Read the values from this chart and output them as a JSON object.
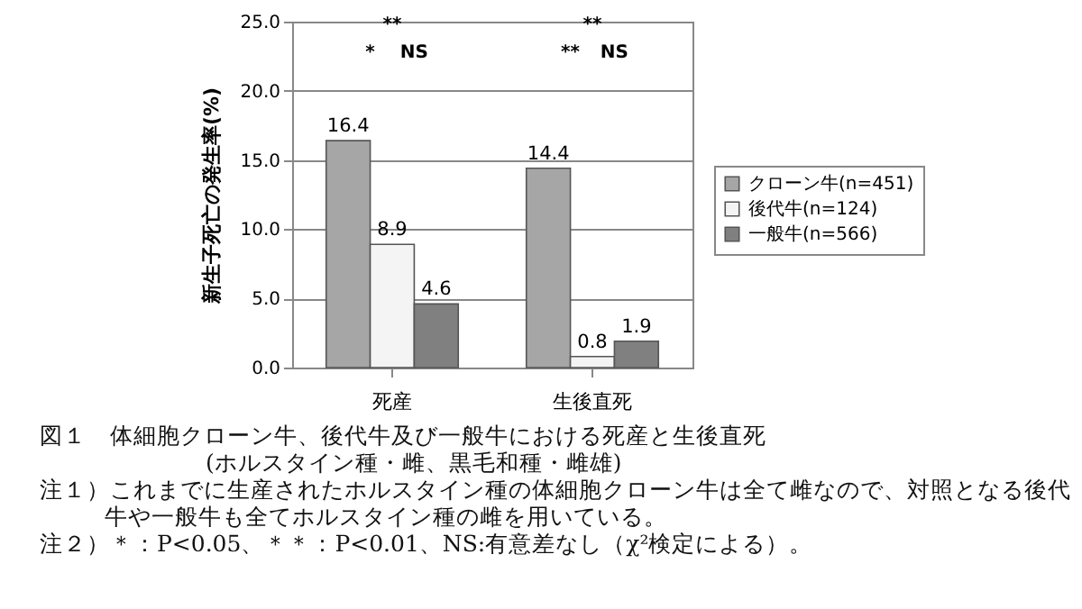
{
  "chart_data": {
    "type": "bar",
    "title": "図１　体細胞クローン牛、後代牛及び一般牛における死産と生後直死",
    "subtitle": "(ホルスタイン種・雌、黒毛和種・雌雄)",
    "ylabel": "新生子死亡の発生率(%)",
    "categories": [
      "死産",
      "生後直死"
    ],
    "series": [
      {
        "name": "クローン牛(n=451)",
        "color": "#a6a6a6",
        "values": [
          16.4,
          14.4
        ]
      },
      {
        "name": "後代牛(n=124)",
        "color": "#f4f4f4",
        "values": [
          8.9,
          0.8
        ]
      },
      {
        "name": "一般牛(n=566)",
        "color": "#808080",
        "values": [
          4.6,
          1.9
        ]
      }
    ],
    "ylim": [
      0,
      25
    ],
    "yticks": [
      {
        "value": 0,
        "label": "0.0"
      },
      {
        "value": 5,
        "label": "5.0"
      },
      {
        "value": 10,
        "label": "10.0"
      },
      {
        "value": 15,
        "label": "15.0"
      },
      {
        "value": 20,
        "label": "20.0"
      },
      {
        "value": 25,
        "label": "25.0"
      }
    ],
    "grid": "y",
    "legend": "right",
    "data_labels": true,
    "annotations": [
      "**",
      "*",
      "NS",
      "**",
      "**",
      "NS",
      "注１）これまでに生産されたホルスタイン種の体細胞クローン牛は全て雌なので、対照となる後代牛や一般牛も全てホルスタイン種の雌を用いている。",
      "注２）＊：P<0.05、＊＊：P<0.01、NS:有意差なし（χ²検定による）。"
    ]
  }
}
